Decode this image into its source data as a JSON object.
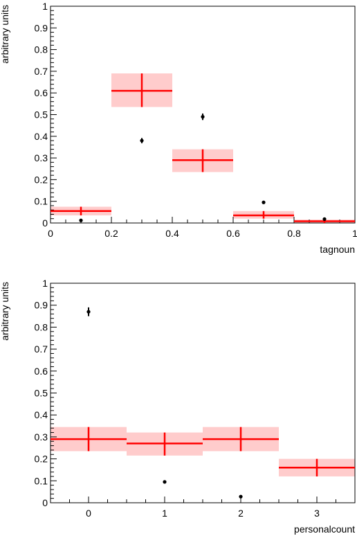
{
  "chart_data": [
    {
      "type": "scatter",
      "xlabel": "tagnoun",
      "ylabel": "arbitrary units",
      "xlim": [
        0,
        1
      ],
      "ylim": [
        0,
        1
      ],
      "x_ticks": [
        "0",
        "0.2",
        "0.4",
        "0.6",
        "0.8",
        "1"
      ],
      "x_tick_values": [
        0,
        0.2,
        0.4,
        0.6,
        0.8,
        1
      ],
      "y_ticks": [
        "0",
        "0.1",
        "0.2",
        "0.3",
        "0.4",
        "0.5",
        "0.6",
        "0.7",
        "0.8",
        "0.9",
        "1"
      ],
      "y_tick_values": [
        0,
        0.1,
        0.2,
        0.3,
        0.4,
        0.5,
        0.6,
        0.7,
        0.8,
        0.9,
        1
      ],
      "series": [
        {
          "kind": "band",
          "color": "#ff0000",
          "band_color": "#ffcccc",
          "bins": [
            {
              "x_low": 0.0,
              "x_high": 0.2,
              "x_center": 0.1,
              "y": 0.055,
              "y_low": 0.035,
              "y_high": 0.075
            },
            {
              "x_low": 0.2,
              "x_high": 0.4,
              "x_center": 0.3,
              "y": 0.61,
              "y_low": 0.535,
              "y_high": 0.69
            },
            {
              "x_low": 0.4,
              "x_high": 0.6,
              "x_center": 0.5,
              "y": 0.29,
              "y_low": 0.235,
              "y_high": 0.34
            },
            {
              "x_low": 0.6,
              "x_high": 0.8,
              "x_center": 0.7,
              "y": 0.035,
              "y_low": 0.02,
              "y_high": 0.055
            },
            {
              "x_low": 0.8,
              "x_high": 1.0,
              "x_center": 0.9,
              "y": 0.008,
              "y_low": 0.0,
              "y_high": 0.016
            }
          ]
        },
        {
          "kind": "points",
          "color": "#000000",
          "points": [
            {
              "x": 0.1,
              "y": 0.012,
              "err": 0.003
            },
            {
              "x": 0.3,
              "y": 0.38,
              "err": 0.012
            },
            {
              "x": 0.5,
              "y": 0.49,
              "err": 0.015
            },
            {
              "x": 0.7,
              "y": 0.095,
              "err": 0.006
            },
            {
              "x": 0.9,
              "y": 0.018,
              "err": 0.003
            }
          ]
        }
      ]
    },
    {
      "type": "scatter",
      "xlabel": "personalcount",
      "ylabel": "arbitrary units",
      "xlim": [
        -0.5,
        3.5
      ],
      "ylim": [
        0,
        1
      ],
      "x_ticks": [
        "0",
        "1",
        "2",
        "3"
      ],
      "x_tick_values": [
        0,
        1,
        2,
        3
      ],
      "y_ticks": [
        "0",
        "0.1",
        "0.2",
        "0.3",
        "0.4",
        "0.5",
        "0.6",
        "0.7",
        "0.8",
        "0.9",
        "1"
      ],
      "y_tick_values": [
        0,
        0.1,
        0.2,
        0.3,
        0.4,
        0.5,
        0.6,
        0.7,
        0.8,
        0.9,
        1
      ],
      "series": [
        {
          "kind": "band",
          "color": "#ff0000",
          "band_color": "#ffcccc",
          "bins": [
            {
              "x_low": -0.5,
              "x_high": 0.5,
              "x_center": 0,
              "y": 0.29,
              "y_low": 0.235,
              "y_high": 0.345
            },
            {
              "x_low": 0.5,
              "x_high": 1.5,
              "x_center": 1,
              "y": 0.27,
              "y_low": 0.215,
              "y_high": 0.32
            },
            {
              "x_low": 1.5,
              "x_high": 2.5,
              "x_center": 2,
              "y": 0.29,
              "y_low": 0.235,
              "y_high": 0.345
            },
            {
              "x_low": 2.5,
              "x_high": 3.5,
              "x_center": 3,
              "y": 0.16,
              "y_low": 0.12,
              "y_high": 0.2
            }
          ]
        },
        {
          "kind": "points",
          "color": "#000000",
          "points": [
            {
              "x": 0,
              "y": 0.87,
              "err": 0.02
            },
            {
              "x": 1,
              "y": 0.095,
              "err": 0.006
            },
            {
              "x": 2,
              "y": 0.028,
              "err": 0.004
            }
          ]
        }
      ]
    }
  ]
}
